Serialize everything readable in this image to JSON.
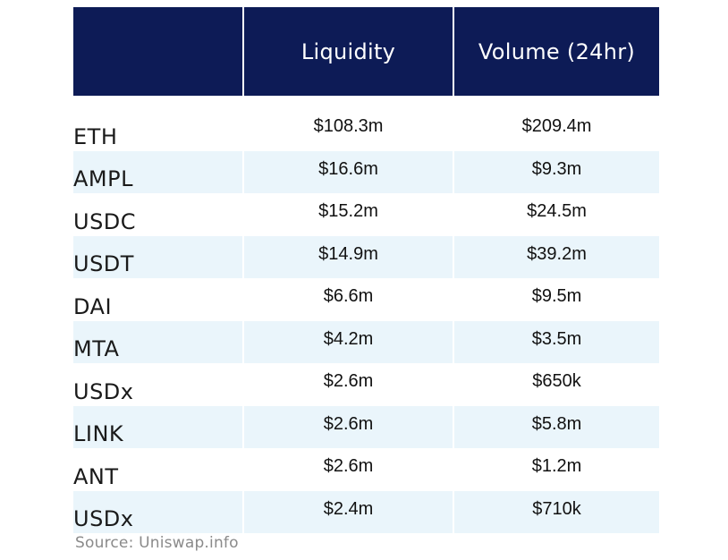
{
  "chart_data": {
    "type": "table",
    "columns": [
      "",
      "Liquidity",
      "Volume (24hr)"
    ],
    "rows": [
      {
        "token": "ETH",
        "liquidity": "$108.3m",
        "volume": "$209.4m"
      },
      {
        "token": "AMPL",
        "liquidity": "$16.6m",
        "volume": "$9.3m"
      },
      {
        "token": "USDC",
        "liquidity": "$15.2m",
        "volume": "$24.5m"
      },
      {
        "token": "USDT",
        "liquidity": "$14.9m",
        "volume": "$39.2m"
      },
      {
        "token": "DAI",
        "liquidity": "$6.6m",
        "volume": "$9.5m"
      },
      {
        "token": "MTA",
        "liquidity": "$4.2m",
        "volume": "$3.5m"
      },
      {
        "token": "USDx",
        "liquidity": "$2.6m",
        "volume": "$650k"
      },
      {
        "token": "LINK",
        "liquidity": "$2.6m",
        "volume": "$5.8m"
      },
      {
        "token": "ANT",
        "liquidity": "$2.6m",
        "volume": "$1.2m"
      },
      {
        "token": "USDx",
        "liquidity": "$2.4m",
        "volume": "$710k"
      }
    ],
    "source": "Source: Uniswap.info"
  },
  "colors": {
    "header_bg": "#0d1b56",
    "header_text": "#ffffff",
    "alt_row_bg": "#eaf5fb",
    "source_text": "#8a8a8a"
  }
}
